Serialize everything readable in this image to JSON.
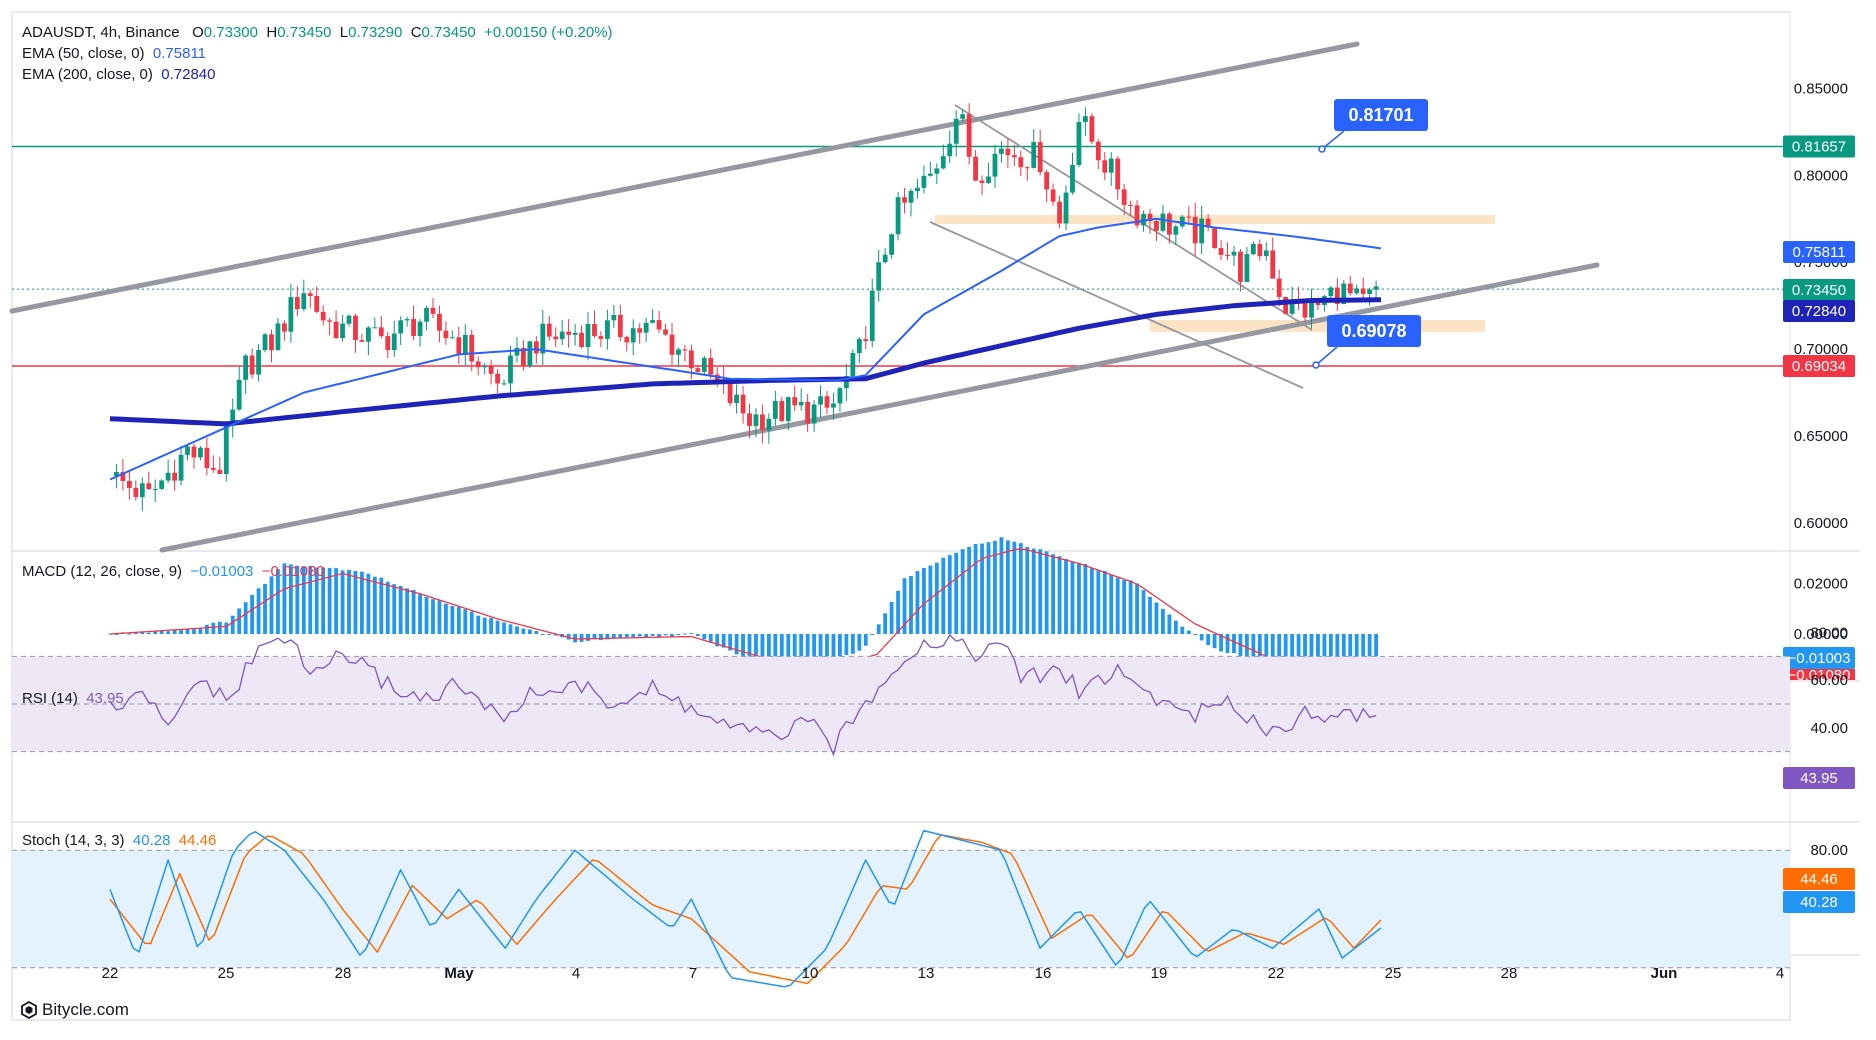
{
  "header": {
    "symbol": "ADAUSDT, 4h, Binance",
    "o_label": "O",
    "o_value": "0.73300",
    "h_label": "H",
    "h_value": "0.73450",
    "l_label": "L",
    "l_value": "0.73290",
    "c_label": "C",
    "c_value": "0.73450",
    "change": "+0.00150 (+0.20%)",
    "ema50_label": "EMA (50, close, 0)",
    "ema50_value": "0.75811",
    "ema200_label": "EMA (200, close, 0)",
    "ema200_value": "0.72840"
  },
  "indicators": {
    "macd_label": "MACD (12, 26, close, 9)",
    "macd_value": "−0.01003",
    "signal_value": "−0.01080",
    "rsi_label": "RSI (14)",
    "rsi_value": "43.95",
    "stoch_label": "Stoch (14, 3, 3)",
    "stoch_k_value": "40.28",
    "stoch_d_value": "44.46"
  },
  "callouts": {
    "upper": "0.81701",
    "lower": "0.69078"
  },
  "price_axis": {
    "ticks": [
      "0.85000",
      "0.80000",
      "0.75000",
      "0.70000",
      "0.65000",
      "0.60000"
    ],
    "badges": {
      "resistance": "0.81657",
      "ema50": "0.75811",
      "last": "0.73450",
      "ema200": "0.72840",
      "support": "0.69034"
    }
  },
  "macd_axis": {
    "ticks": [
      "0.02000",
      "0.00000"
    ],
    "badges": [
      "−0.01003",
      "−0.01080"
    ]
  },
  "rsi_axis": {
    "ticks": [
      "80.00",
      "60.00",
      "40.00"
    ],
    "badge": "43.95"
  },
  "stoch_axis": {
    "ticks": [
      "80.00"
    ],
    "badges": [
      "44.46",
      "40.28"
    ]
  },
  "time_axis": {
    "labels": [
      "22",
      "25",
      "28",
      "May",
      "4",
      "7",
      "10",
      "13",
      "16",
      "19",
      "22",
      "25",
      "28",
      "Jun",
      "4"
    ]
  },
  "credit": "Bitycle.com",
  "colors": {
    "up": "#089981",
    "down": "#f23645",
    "ema50": "#2962ff",
    "ema200": "#1f23b8",
    "resistance": "#089981",
    "support": "#f23645",
    "callout": "#2962ff",
    "channel": "#9598a1",
    "zone": "#fbe3c4",
    "macd_hist": "#2196f3",
    "signal": "#f23645",
    "rsi": "#7e57c2",
    "rsi_band": "#ede7f6",
    "stoch_k": "#2196f3",
    "stoch_d": "#ff6d00",
    "stoch_band": "#e3f2fd"
  },
  "chart_data": {
    "type": "candlestick",
    "symbol": "ADAUSDT",
    "timeframe": "4h",
    "ylim": [
      0.585,
      0.87
    ],
    "x_labels": [
      "22",
      "25",
      "28",
      "May",
      "4",
      "7",
      "10",
      "13",
      "16",
      "19",
      "22",
      "25",
      "28",
      "Jun",
      "4"
    ],
    "last": 0.7345,
    "levels": {
      "resistance": 0.81657,
      "support": 0.69034,
      "target_upper": 0.81701,
      "target_lower": 0.69078
    },
    "ema50_last": 0.75811,
    "ema200_last": 0.7284,
    "close_path": [
      {
        "d": 0,
        "p": 0.627
      },
      {
        "d": 1,
        "p": 0.615
      },
      {
        "d": 2,
        "p": 0.642
      },
      {
        "d": 2.8,
        "p": 0.63
      },
      {
        "d": 3.5,
        "p": 0.69
      },
      {
        "d": 4.2,
        "p": 0.705
      },
      {
        "d": 5,
        "p": 0.735
      },
      {
        "d": 5.6,
        "p": 0.715
      },
      {
        "d": 7,
        "p": 0.705
      },
      {
        "d": 8,
        "p": 0.717
      },
      {
        "d": 9,
        "p": 0.705
      },
      {
        "d": 10,
        "p": 0.68
      },
      {
        "d": 11,
        "p": 0.705
      },
      {
        "d": 12,
        "p": 0.71
      },
      {
        "d": 14,
        "p": 0.712
      },
      {
        "d": 15,
        "p": 0.695
      },
      {
        "d": 16.5,
        "p": 0.66
      },
      {
        "d": 17.5,
        "p": 0.665
      },
      {
        "d": 18.6,
        "p": 0.665
      },
      {
        "d": 19.3,
        "p": 0.695
      },
      {
        "d": 20.2,
        "p": 0.775
      },
      {
        "d": 21.2,
        "p": 0.8
      },
      {
        "d": 21.9,
        "p": 0.838
      },
      {
        "d": 22.3,
        "p": 0.8
      },
      {
        "d": 23,
        "p": 0.815
      },
      {
        "d": 24,
        "p": 0.81
      },
      {
        "d": 24.5,
        "p": 0.772
      },
      {
        "d": 25,
        "p": 0.833
      },
      {
        "d": 25.6,
        "p": 0.81
      },
      {
        "d": 26.4,
        "p": 0.78
      },
      {
        "d": 27.5,
        "p": 0.77
      },
      {
        "d": 28.5,
        "p": 0.765
      },
      {
        "d": 29.2,
        "p": 0.745
      },
      {
        "d": 29.8,
        "p": 0.76
      },
      {
        "d": 30.3,
        "p": 0.725
      },
      {
        "d": 31,
        "p": 0.722
      },
      {
        "d": 31.7,
        "p": 0.735
      },
      {
        "d": 32.3,
        "p": 0.725
      },
      {
        "d": 32.8,
        "p": 0.7345
      }
    ],
    "ema50": [
      {
        "d": 0,
        "p": 0.625
      },
      {
        "d": 5,
        "p": 0.675
      },
      {
        "d": 9,
        "p": 0.697
      },
      {
        "d": 11,
        "p": 0.7
      },
      {
        "d": 16,
        "p": 0.683
      },
      {
        "d": 18.8,
        "p": 0.682
      },
      {
        "d": 19.5,
        "p": 0.685
      },
      {
        "d": 21,
        "p": 0.72
      },
      {
        "d": 23,
        "p": 0.745
      },
      {
        "d": 24.5,
        "p": 0.765
      },
      {
        "d": 25.5,
        "p": 0.77
      },
      {
        "d": 27,
        "p": 0.775
      },
      {
        "d": 28.5,
        "p": 0.77
      },
      {
        "d": 30.5,
        "p": 0.765
      },
      {
        "d": 32.8,
        "p": 0.758
      }
    ],
    "ema200": [
      {
        "d": 0,
        "p": 0.66
      },
      {
        "d": 3,
        "p": 0.657
      },
      {
        "d": 6,
        "p": 0.664
      },
      {
        "d": 10,
        "p": 0.673
      },
      {
        "d": 14,
        "p": 0.68
      },
      {
        "d": 17,
        "p": 0.682
      },
      {
        "d": 19.5,
        "p": 0.683
      },
      {
        "d": 21,
        "p": 0.692
      },
      {
        "d": 23,
        "p": 0.702
      },
      {
        "d": 25,
        "p": 0.712
      },
      {
        "d": 27,
        "p": 0.72
      },
      {
        "d": 29,
        "p": 0.725
      },
      {
        "d": 31,
        "p": 0.728
      },
      {
        "d": 32.8,
        "p": 0.7284
      }
    ],
    "macd_hist": [
      {
        "d": 0,
        "p": 0
      },
      {
        "d": 2,
        "p": 0.002
      },
      {
        "d": 3,
        "p": 0.005
      },
      {
        "d": 4.5,
        "p": 0.028
      },
      {
        "d": 6.5,
        "p": 0.025
      },
      {
        "d": 8,
        "p": 0.016
      },
      {
        "d": 10,
        "p": 0.005
      },
      {
        "d": 12,
        "p": -0.003
      },
      {
        "d": 15,
        "p": 0
      },
      {
        "d": 16.5,
        "p": -0.01
      },
      {
        "d": 18,
        "p": -0.016
      },
      {
        "d": 19.5,
        "p": -0.005
      },
      {
        "d": 20.5,
        "p": 0.022
      },
      {
        "d": 22,
        "p": 0.034
      },
      {
        "d": 23,
        "p": 0.038
      },
      {
        "d": 24.5,
        "p": 0.031
      },
      {
        "d": 26.5,
        "p": 0.02
      },
      {
        "d": 27.5,
        "p": 0.005
      },
      {
        "d": 28.5,
        "p": -0.006
      },
      {
        "d": 30.5,
        "p": -0.014
      },
      {
        "d": 31.5,
        "p": -0.018
      },
      {
        "d": 32.8,
        "p": -0.01
      }
    ],
    "macd_signal": [
      {
        "d": 0,
        "p": 0
      },
      {
        "d": 3,
        "p": 0.003
      },
      {
        "d": 4.5,
        "p": 0.018
      },
      {
        "d": 6,
        "p": 0.024
      },
      {
        "d": 8,
        "p": 0.016
      },
      {
        "d": 10,
        "p": 0.006
      },
      {
        "d": 12,
        "p": -0.002
      },
      {
        "d": 15,
        "p": -0.001
      },
      {
        "d": 17,
        "p": -0.01
      },
      {
        "d": 18.5,
        "p": -0.014
      },
      {
        "d": 19.8,
        "p": -0.008
      },
      {
        "d": 21,
        "p": 0.012
      },
      {
        "d": 22.5,
        "p": 0.03
      },
      {
        "d": 23.5,
        "p": 0.034
      },
      {
        "d": 25,
        "p": 0.028
      },
      {
        "d": 26.5,
        "p": 0.02
      },
      {
        "d": 28,
        "p": 0.004
      },
      {
        "d": 30,
        "p": -0.01
      },
      {
        "d": 31.5,
        "p": -0.014
      },
      {
        "d": 32.8,
        "p": -0.0108
      }
    ],
    "rsi": [
      {
        "d": 0,
        "p": 48
      },
      {
        "d": 1,
        "p": 53
      },
      {
        "d": 1.5,
        "p": 38
      },
      {
        "d": 2.3,
        "p": 62
      },
      {
        "d": 3,
        "p": 50
      },
      {
        "d": 3.8,
        "p": 72
      },
      {
        "d": 4.5,
        "p": 79
      },
      {
        "d": 5.2,
        "p": 62
      },
      {
        "d": 6,
        "p": 72
      },
      {
        "d": 7,
        "p": 60
      },
      {
        "d": 8,
        "p": 52
      },
      {
        "d": 9,
        "p": 58
      },
      {
        "d": 10,
        "p": 44
      },
      {
        "d": 11,
        "p": 55
      },
      {
        "d": 12,
        "p": 58
      },
      {
        "d": 13,
        "p": 50
      },
      {
        "d": 14,
        "p": 56
      },
      {
        "d": 15,
        "p": 48
      },
      {
        "d": 16,
        "p": 40
      },
      {
        "d": 17,
        "p": 36
      },
      {
        "d": 18,
        "p": 42
      },
      {
        "d": 18.7,
        "p": 32
      },
      {
        "d": 19.4,
        "p": 48
      },
      {
        "d": 20,
        "p": 62
      },
      {
        "d": 20.8,
        "p": 74
      },
      {
        "d": 21.8,
        "p": 78
      },
      {
        "d": 22.5,
        "p": 70
      },
      {
        "d": 23.2,
        "p": 76
      },
      {
        "d": 23.5,
        "p": 60
      },
      {
        "d": 24.5,
        "p": 64
      },
      {
        "d": 25,
        "p": 56
      },
      {
        "d": 26,
        "p": 64
      },
      {
        "d": 27,
        "p": 52
      },
      {
        "d": 28,
        "p": 46
      },
      {
        "d": 29,
        "p": 50
      },
      {
        "d": 30,
        "p": 38
      },
      {
        "d": 31,
        "p": 48
      },
      {
        "d": 31.6,
        "p": 42
      },
      {
        "d": 32,
        "p": 47
      },
      {
        "d": 32.8,
        "p": 43.95
      }
    ],
    "stoch_k": [
      {
        "d": 0,
        "p": 60
      },
      {
        "d": 0.7,
        "p": 25
      },
      {
        "d": 1.5,
        "p": 75
      },
      {
        "d": 2.3,
        "p": 28
      },
      {
        "d": 3.2,
        "p": 80
      },
      {
        "d": 3.7,
        "p": 90
      },
      {
        "d": 4.5,
        "p": 80
      },
      {
        "d": 5.5,
        "p": 55
      },
      {
        "d": 6.5,
        "p": 25
      },
      {
        "d": 7.5,
        "p": 70
      },
      {
        "d": 8.3,
        "p": 40
      },
      {
        "d": 9,
        "p": 60
      },
      {
        "d": 10.2,
        "p": 30
      },
      {
        "d": 11,
        "p": 55
      },
      {
        "d": 12,
        "p": 80
      },
      {
        "d": 13.5,
        "p": 55
      },
      {
        "d": 14.5,
        "p": 40
      },
      {
        "d": 15,
        "p": 55
      },
      {
        "d": 16,
        "p": 15
      },
      {
        "d": 17.5,
        "p": 10
      },
      {
        "d": 18.5,
        "p": 30
      },
      {
        "d": 19.5,
        "p": 75
      },
      {
        "d": 20.2,
        "p": 50
      },
      {
        "d": 21,
        "p": 90
      },
      {
        "d": 22,
        "p": 85
      },
      {
        "d": 23,
        "p": 80
      },
      {
        "d": 24,
        "p": 30
      },
      {
        "d": 25,
        "p": 50
      },
      {
        "d": 26,
        "p": 20
      },
      {
        "d": 26.8,
        "p": 55
      },
      {
        "d": 28,
        "p": 25
      },
      {
        "d": 29,
        "p": 40
      },
      {
        "d": 30,
        "p": 30
      },
      {
        "d": 31.2,
        "p": 50
      },
      {
        "d": 31.8,
        "p": 25
      },
      {
        "d": 32.8,
        "p": 40.28
      }
    ],
    "stoch_d": [
      {
        "d": 0,
        "p": 55
      },
      {
        "d": 1,
        "p": 30
      },
      {
        "d": 1.8,
        "p": 68
      },
      {
        "d": 2.6,
        "p": 32
      },
      {
        "d": 3.5,
        "p": 78
      },
      {
        "d": 4.1,
        "p": 88
      },
      {
        "d": 5,
        "p": 78
      },
      {
        "d": 6,
        "p": 50
      },
      {
        "d": 6.9,
        "p": 28
      },
      {
        "d": 7.8,
        "p": 62
      },
      {
        "d": 8.7,
        "p": 45
      },
      {
        "d": 9.5,
        "p": 55
      },
      {
        "d": 10.5,
        "p": 32
      },
      {
        "d": 11.5,
        "p": 55
      },
      {
        "d": 12.5,
        "p": 76
      },
      {
        "d": 14,
        "p": 52
      },
      {
        "d": 15,
        "p": 45
      },
      {
        "d": 16.5,
        "p": 18
      },
      {
        "d": 18,
        "p": 12
      },
      {
        "d": 19,
        "p": 32
      },
      {
        "d": 19.9,
        "p": 62
      },
      {
        "d": 20.6,
        "p": 60
      },
      {
        "d": 21.4,
        "p": 88
      },
      {
        "d": 22.5,
        "p": 84
      },
      {
        "d": 23.3,
        "p": 78
      },
      {
        "d": 24.3,
        "p": 35
      },
      {
        "d": 25.3,
        "p": 48
      },
      {
        "d": 26.3,
        "p": 24
      },
      {
        "d": 27.2,
        "p": 50
      },
      {
        "d": 28.3,
        "p": 28
      },
      {
        "d": 29.3,
        "p": 38
      },
      {
        "d": 30.3,
        "p": 32
      },
      {
        "d": 31.4,
        "p": 46
      },
      {
        "d": 32.1,
        "p": 30
      },
      {
        "d": 32.8,
        "p": 44.46
      }
    ]
  }
}
